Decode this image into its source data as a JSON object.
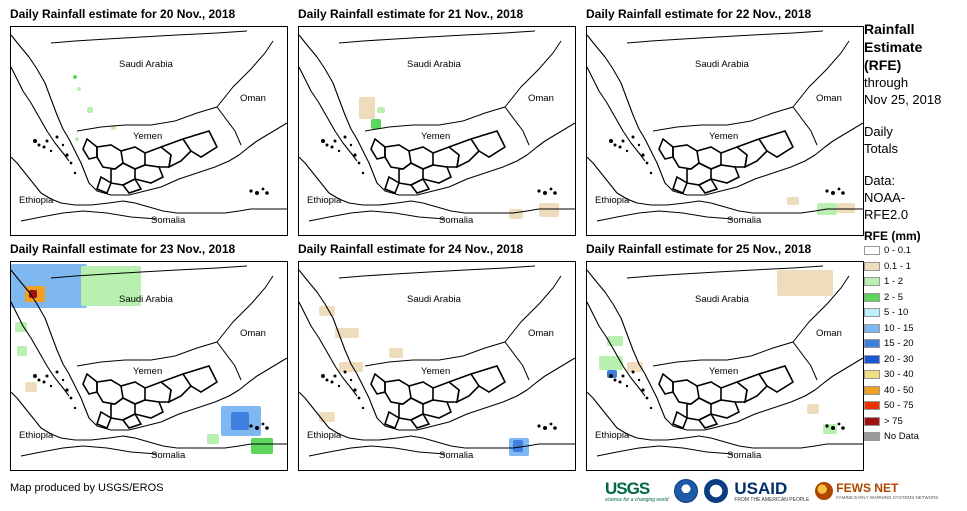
{
  "panels": [
    {
      "title": "Daily Rainfall estimate for 20 Nov., 2018",
      "rain": []
    },
    {
      "title": "Daily Rainfall estimate for 21 Nov., 2018",
      "rain": []
    },
    {
      "title": "Daily Rainfall estimate for 22 Nov., 2018",
      "rain": []
    },
    {
      "title": "Daily Rainfall estimate for 23 Nov., 2018",
      "rain": []
    },
    {
      "title": "Daily Rainfall estimate for 24 Nov., 2018",
      "rain": []
    },
    {
      "title": "Daily Rainfall estimate for 25 Nov., 2018",
      "rain": []
    }
  ],
  "countries": {
    "saudi_arabia": "Saudi Arabia",
    "oman": "Oman",
    "yemen": "Yemen",
    "ethiopia": "Ethiopia",
    "somalia": "Somalia"
  },
  "sidebar": {
    "heading_line1": "Rainfall",
    "heading_line2": "Estimate",
    "heading_line3": "(RFE)",
    "through": "through",
    "date": "Nov 25, 2018",
    "daily": "Daily",
    "totals": "Totals",
    "data_label": "Data:",
    "data_source_line1": "NOAA-",
    "data_source_line2": "RFE2.0"
  },
  "legend": {
    "title": "RFE (mm)",
    "items": [
      {
        "label": "0 - 0.1",
        "color": "#ffffff"
      },
      {
        "label": "0.1 - 1",
        "color": "#eedcbc"
      },
      {
        "label": "1 - 2",
        "color": "#b8f0b0"
      },
      {
        "label": "2 - 5",
        "color": "#5cd65c"
      },
      {
        "label": "5 - 10",
        "color": "#bff0ff"
      },
      {
        "label": "10 - 15",
        "color": "#7fb8f0"
      },
      {
        "label": "15 - 20",
        "color": "#3e7fe0"
      },
      {
        "label": "20 - 30",
        "color": "#1a56d6"
      },
      {
        "label": "30 - 40",
        "color": "#f0e080"
      },
      {
        "label": "40 - 50",
        "color": "#f0a020"
      },
      {
        "label": "50 - 75",
        "color": "#f03000"
      },
      {
        "label": "> 75",
        "color": "#a01010"
      },
      {
        "label": "No Data",
        "color": "#9a9a9a"
      }
    ]
  },
  "credit": "Map produced by USGS/EROS",
  "logos": {
    "usgs": "USGS",
    "usgs_tagline": "science for a changing world",
    "usaid": "USAID",
    "usaid_tagline": "FROM THE AMERICAN PEOPLE",
    "fews": "FEWS NET",
    "fews_tagline": "FAMINE EARLY WARNING SYSTEMS NETWORK"
  }
}
